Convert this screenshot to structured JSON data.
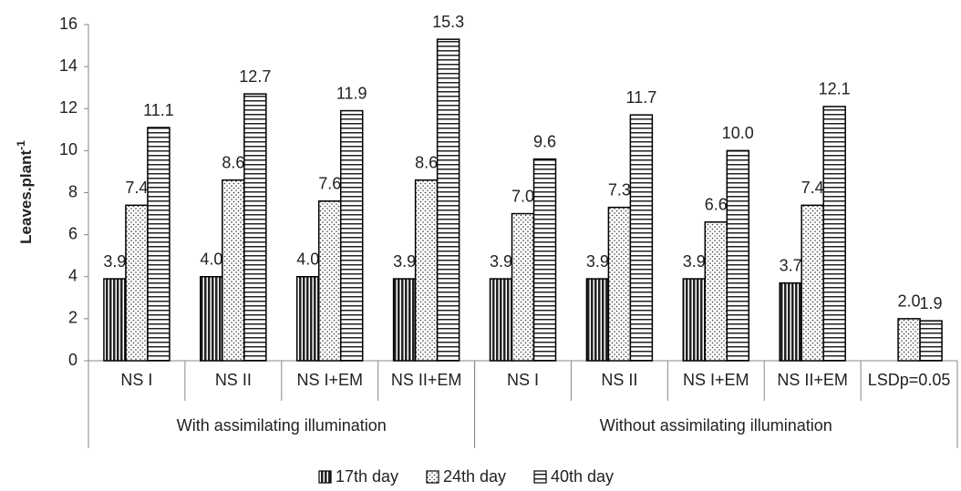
{
  "chart_data": {
    "type": "bar",
    "y_label": "Leaves.plant",
    "y_label_superscript": "-1",
    "categories": [
      "NS I",
      "NS II",
      "NS I+EM",
      "NS II+EM",
      "NS I",
      "NS II",
      "NS I+EM",
      "NS II+EM",
      "LSDp=0.05"
    ],
    "groups": [
      {
        "label": "With assimilating illumination",
        "span": 4
      },
      {
        "label": "Without assimilating illumination",
        "span": 5
      }
    ],
    "series": [
      {
        "name": "17th day",
        "color": "#000000",
        "pattern": "vertical",
        "values": [
          3.9,
          4.0,
          4.0,
          3.9,
          3.9,
          3.9,
          3.9,
          3.7,
          null
        ],
        "value_labels": [
          "3.9",
          "4.0",
          "4.0",
          "3.9",
          "3.9",
          "3.9",
          "3.9",
          "3.7",
          null
        ]
      },
      {
        "name": "24th day",
        "color": "#000000",
        "pattern": "dots",
        "values": [
          7.4,
          8.6,
          7.6,
          8.6,
          7.0,
          7.3,
          6.6,
          7.4,
          2.0
        ],
        "value_labels": [
          "7.4",
          "8.6",
          "7.6",
          "8.6",
          "7.0",
          "7.3",
          "6.6",
          "7.4",
          "2.0"
        ]
      },
      {
        "name": "40th day",
        "color": "#000000",
        "pattern": "horizontal",
        "values": [
          11.1,
          12.7,
          11.9,
          15.3,
          9.6,
          11.7,
          10.0,
          12.1,
          1.9
        ],
        "value_labels": [
          "11.1",
          "12.7",
          "11.9",
          "15.3",
          "9.6",
          "11.7",
          "10.0",
          "12.1",
          "1.9"
        ]
      }
    ],
    "ylim": [
      0,
      16
    ],
    "yticks": [
      0,
      2,
      4,
      6,
      8,
      10,
      12,
      14,
      16
    ],
    "grid": false,
    "legend": "bottom"
  }
}
